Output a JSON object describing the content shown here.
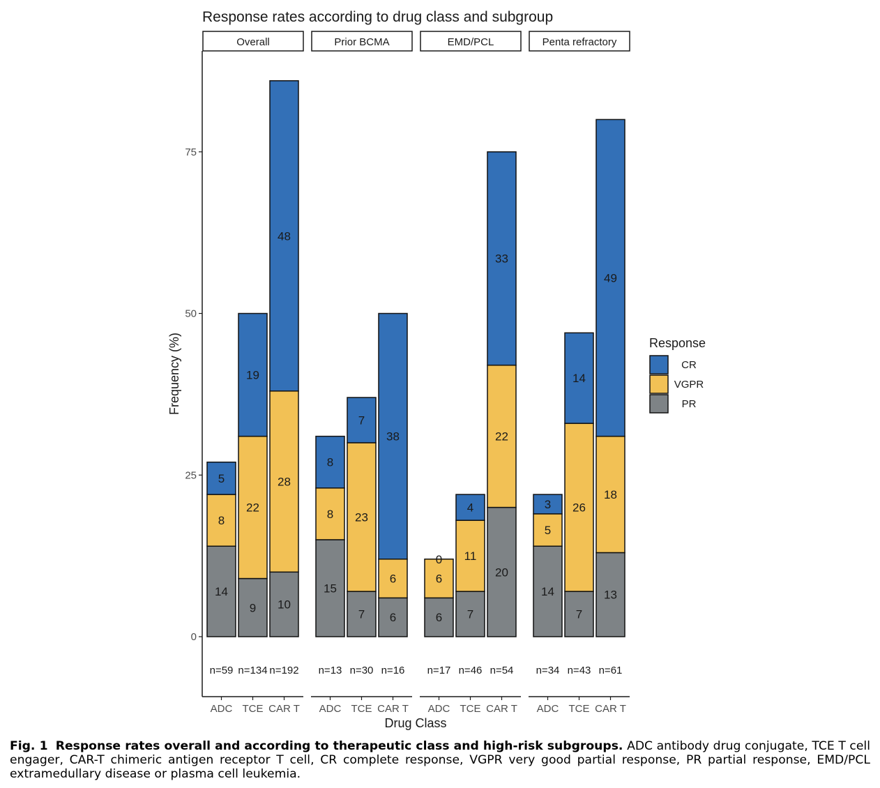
{
  "chart_data": {
    "type": "bar",
    "stacked": true,
    "title": "Response rates according to drug class and subgroup",
    "xlabel": "Drug Class",
    "ylabel": "Frequency (%)",
    "ylim": [
      -12,
      90
    ],
    "yticks": [
      0,
      25,
      50,
      75
    ],
    "grid": false,
    "categories": [
      "ADC",
      "TCE",
      "CAR T"
    ],
    "legend": {
      "title": "Response",
      "placement": "right",
      "entries": [
        {
          "name": "CR",
          "color": "#3370b7"
        },
        {
          "name": "VGPR",
          "color": "#f2c155"
        },
        {
          "name": "PR",
          "color": "#7e8386"
        }
      ]
    },
    "panels": [
      {
        "label": "Overall",
        "bars": [
          {
            "category": "ADC",
            "n_label": "n=59",
            "PR": 14,
            "VGPR": 8,
            "CR": 5
          },
          {
            "category": "TCE",
            "n_label": "n=134",
            "PR": 9,
            "VGPR": 22,
            "CR": 19
          },
          {
            "category": "CAR T",
            "n_label": "n=192",
            "PR": 10,
            "VGPR": 28,
            "CR": 48
          }
        ]
      },
      {
        "label": "Prior BCMA",
        "bars": [
          {
            "category": "ADC",
            "n_label": "n=13",
            "PR": 15,
            "VGPR": 8,
            "CR": 8
          },
          {
            "category": "TCE",
            "n_label": "n=30",
            "PR": 7,
            "VGPR": 23,
            "CR": 7
          },
          {
            "category": "CAR T",
            "n_label": "n=16",
            "PR": 6,
            "VGPR": 6,
            "CR": 38
          }
        ]
      },
      {
        "label": "EMD/PCL",
        "bars": [
          {
            "category": "ADC",
            "n_label": "n=17",
            "PR": 6,
            "VGPR": 6,
            "CR": 0
          },
          {
            "category": "TCE",
            "n_label": "n=46",
            "PR": 7,
            "VGPR": 11,
            "CR": 4
          },
          {
            "category": "CAR T",
            "n_label": "n=54",
            "PR": 20,
            "VGPR": 22,
            "CR": 33
          }
        ]
      },
      {
        "label": "Penta refractory",
        "bars": [
          {
            "category": "ADC",
            "n_label": "n=34",
            "PR": 14,
            "VGPR": 5,
            "CR": 3
          },
          {
            "category": "TCE",
            "n_label": "n=43",
            "PR": 7,
            "VGPR": 26,
            "CR": 14
          },
          {
            "category": "CAR T",
            "n_label": "n=61",
            "PR": 13,
            "VGPR": 18,
            "CR": 49
          }
        ]
      }
    ]
  },
  "caption": {
    "label": "Fig. 1",
    "heading": "Response rates overall and according to therapeutic class and high-risk subgroups.",
    "body": "ADC antibody drug conjugate, TCE T cell engager, CAR-T chimeric antigen receptor T cell, CR complete response, VGPR very good partial response, PR partial response, EMD/PCL extramedullary disease or plasma cell leukemia."
  }
}
